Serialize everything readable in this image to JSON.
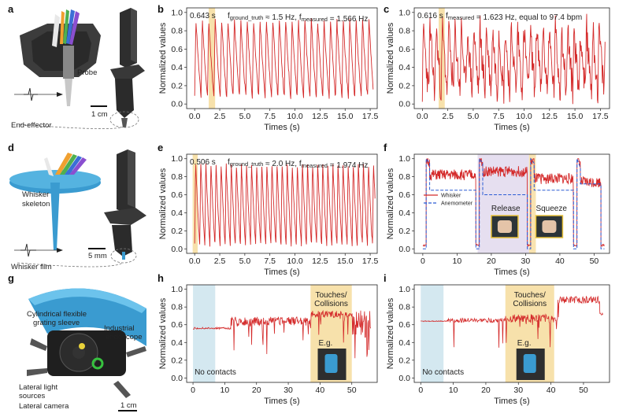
{
  "panel_letters": [
    "a",
    "b",
    "c",
    "d",
    "e",
    "f",
    "g",
    "h",
    "i"
  ],
  "illustrations": {
    "a": {
      "labels": [
        "Probe",
        "1 cm",
        "End-effector"
      ]
    },
    "d": {
      "labels": [
        "Whisker",
        "skeleton",
        "5 mm",
        "Whisker film"
      ]
    },
    "g": {
      "labels": [
        "Cylindrical flexible",
        "grating sleeve",
        "Industrial",
        "endoscope",
        "Lateral light",
        "sources",
        "Lateral camera",
        "1 cm"
      ]
    }
  },
  "colors": {
    "signal": "#d42a2a",
    "anemometer": "#2a5bd4",
    "highlight": "#f6dc9c",
    "blue_band": "#cfe6ee",
    "purple_band": "#dcd2ea",
    "sleeve": "#3a9bd0"
  },
  "chart_data": [
    {
      "panel": "b",
      "type": "line",
      "xlabel": "Times (s)",
      "ylabel": "Normalized values",
      "xlim": [
        -0.8,
        18.2
      ],
      "ylim": [
        -0.05,
        1.05
      ],
      "xticks": [
        "0.0",
        "2.5",
        "5.0",
        "7.5",
        "10.0",
        "12.5",
        "15.0",
        "17.5"
      ],
      "yticks": [
        "0.0",
        "0.2",
        "0.4",
        "0.6",
        "0.8",
        "1.0"
      ],
      "annotation": {
        "period": "0.643 s",
        "f_gt_main": "f",
        "f_gt_sub": "ground_truth",
        "f_gt_value": " ≈ 1.5 Hz,",
        "f_meas_main": "f",
        "f_meas_sub": "measured",
        "f_meas_value": " = 1.566 Hz"
      },
      "highlight": [
        1.4,
        2.04
      ],
      "signal": {
        "freq": 1.566,
        "min": 0.08,
        "max": 0.95,
        "t_end": 17.8
      }
    },
    {
      "panel": "c",
      "type": "line",
      "xlabel": "Times (s)",
      "ylabel": "Normalized values",
      "xlim": [
        -0.8,
        18.4
      ],
      "ylim": [
        -0.05,
        1.05
      ],
      "xticks": [
        "0.0",
        "2.5",
        "5.0",
        "7.5",
        "10.0",
        "12.5",
        "15.0",
        "17.5"
      ],
      "yticks": [
        "0.0",
        "0.2",
        "0.4",
        "0.6",
        "0.8",
        "1.0"
      ],
      "annotation": {
        "period": "0.616 s",
        "f_meas_main": "f",
        "f_meas_sub": "measured",
        "f_meas_value": " = 1.623 Hz,  equal to 97.4 bpm"
      },
      "highlight": [
        1.6,
        2.2
      ],
      "signal": {
        "freq": 1.623,
        "min": 0.15,
        "max": 0.85,
        "t_end": 18.0
      }
    },
    {
      "panel": "e",
      "type": "line",
      "xlabel": "Times (s)",
      "ylabel": "Normalized values",
      "xlim": [
        -0.8,
        18.2
      ],
      "ylim": [
        -0.05,
        1.05
      ],
      "xticks": [
        "0.0",
        "2.5",
        "5.0",
        "7.5",
        "10.0",
        "12.5",
        "15.0",
        "17.5"
      ],
      "yticks": [
        "0.0",
        "0.2",
        "0.4",
        "0.6",
        "0.8",
        "1.0"
      ],
      "annotation": {
        "period": "0.506 s",
        "f_gt_main": "f",
        "f_gt_sub": "ground_truth",
        "f_gt_value": " ≈ 2.0 Hz,",
        "f_meas_main": "f",
        "f_meas_sub": "measured",
        "f_meas_value": " = 1.974 Hz"
      },
      "highlight": [
        -0.2,
        0.3
      ],
      "signal": {
        "freq": 1.974,
        "min": 0.05,
        "max": 0.97,
        "t_end": 18.0
      }
    },
    {
      "panel": "f",
      "type": "line",
      "xlabel": "Times (s)",
      "ylabel": "Normalized values",
      "xlim": [
        -2.5,
        54.5
      ],
      "ylim": [
        -0.05,
        1.05
      ],
      "xticks": [
        "0",
        "10",
        "20",
        "30",
        "40",
        "50"
      ],
      "yticks": [
        "0.0",
        "0.2",
        "0.4",
        "0.6",
        "0.8",
        "1.0"
      ],
      "series": [
        {
          "name": "Whisker"
        },
        {
          "name": "Anemometer"
        }
      ],
      "bands": [
        [
          16,
          31,
          "purple"
        ],
        [
          31,
          33,
          "yellow"
        ]
      ],
      "labels": [
        "Release",
        "Squeeze"
      ]
    },
    {
      "panel": "h",
      "type": "line",
      "xlabel": "Times (s)",
      "ylabel": "Normalized values",
      "xlim": [
        -2,
        58
      ],
      "ylim": [
        -0.05,
        1.05
      ],
      "xticks": [
        "0",
        "10",
        "20",
        "30",
        "40",
        "50"
      ],
      "yticks": [
        "0.0",
        "0.2",
        "0.4",
        "0.6",
        "0.8",
        "1.0"
      ],
      "bands": [
        [
          0,
          7,
          "blue"
        ],
        [
          37,
          50,
          "yellow"
        ]
      ],
      "labels": [
        "No contacts",
        "Touches/",
        "Collisions",
        "E.g."
      ]
    },
    {
      "panel": "i",
      "type": "line",
      "xlabel": "Times (s)",
      "ylabel": "Normalized values",
      "xlim": [
        -2,
        58
      ],
      "ylim": [
        -0.05,
        1.05
      ],
      "xticks": [
        "0",
        "10",
        "20",
        "30",
        "40",
        "50"
      ],
      "yticks": [
        "0.0",
        "0.2",
        "0.4",
        "0.6",
        "0.8",
        "1.0"
      ],
      "bands": [
        [
          0,
          7,
          "blue"
        ],
        [
          26,
          41,
          "yellow"
        ]
      ],
      "labels": [
        "No contacts",
        "Touches/",
        "Collisions",
        "E.g."
      ]
    }
  ]
}
